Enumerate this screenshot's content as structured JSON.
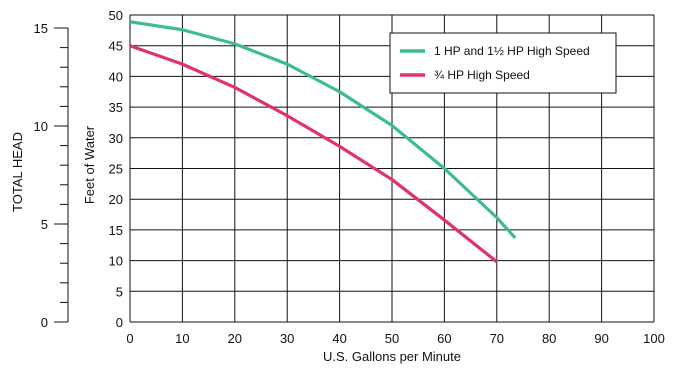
{
  "chart_data": {
    "type": "line",
    "xlabel": "U.S. Gallons per Minute",
    "ylabel": "Feet of Water",
    "y2label": "TOTAL HEAD",
    "xlim": [
      0,
      100
    ],
    "ylim": [
      0,
      50
    ],
    "y2lim": [
      0,
      15
    ],
    "x_ticks": [
      "0",
      "10",
      "20",
      "30",
      "40",
      "50",
      "60",
      "70",
      "80",
      "90",
      "100"
    ],
    "y_ticks": [
      "0",
      "5",
      "10",
      "15",
      "20",
      "25",
      "30",
      "35",
      "40",
      "45",
      "50"
    ],
    "y2_major_ticks": [
      "0",
      "5",
      "10",
      "15"
    ],
    "grid": true,
    "legend_position": "top-right",
    "series": [
      {
        "name": "1 HP and 1½ HP High Speed",
        "color": "#3dbb95",
        "x": [
          0,
          10,
          20,
          30,
          40,
          50,
          60,
          70,
          73.5
        ],
        "y": [
          48.9,
          47.6,
          45.3,
          42.0,
          37.5,
          32.0,
          25.0,
          17.0,
          13.7
        ]
      },
      {
        "name": "¾ HP High Speed",
        "color": "#e0336b",
        "x": [
          0,
          10,
          20,
          30,
          40,
          50,
          60,
          70
        ],
        "y": [
          45.0,
          42.0,
          38.2,
          33.6,
          28.6,
          23.2,
          16.6,
          9.8
        ]
      }
    ]
  }
}
